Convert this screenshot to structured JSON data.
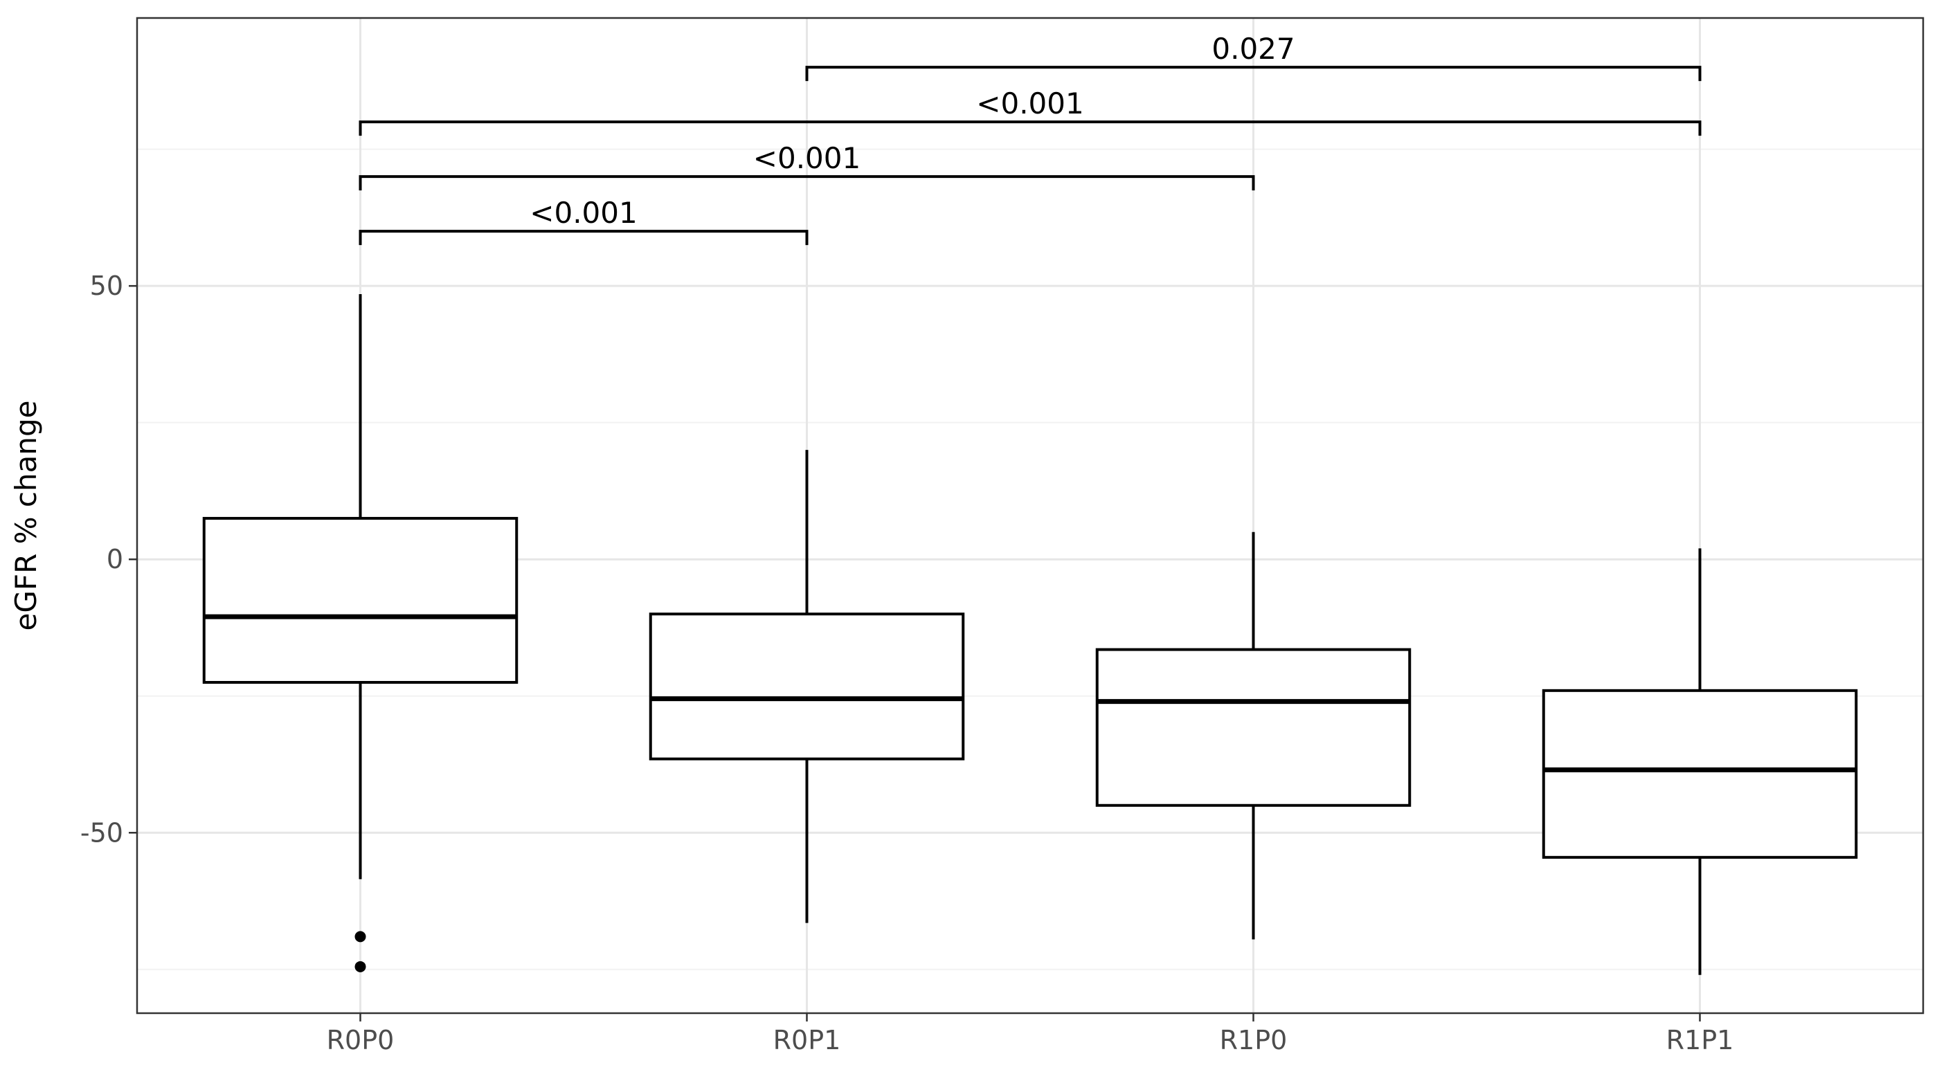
{
  "chart_data": {
    "type": "box",
    "ylabel": "eGFR % change",
    "xlabel": "",
    "categories": [
      "R0P0",
      "R0P1",
      "R1P0",
      "R1P1"
    ],
    "ylim": [
      -83,
      99
    ],
    "yticks": [
      50,
      0,
      -50
    ],
    "ytick_labels": [
      "50",
      "0",
      "-50"
    ],
    "grid": true,
    "boxes": [
      {
        "category": "R0P0",
        "whisker_low": -58.5,
        "q1": -22.5,
        "median": -10.5,
        "q3": 7.5,
        "whisker_high": 48.5
      },
      {
        "category": "R0P1",
        "whisker_low": -66.5,
        "q1": -36.5,
        "median": -25.5,
        "q3": -10,
        "whisker_high": 20
      },
      {
        "category": "R1P0",
        "whisker_low": -69.5,
        "q1": -45,
        "median": -26,
        "q3": -16.5,
        "whisker_high": 5
      },
      {
        "category": "R1P1",
        "whisker_low": -76,
        "q1": -54.5,
        "median": -38.5,
        "q3": -24,
        "whisker_high": 2
      }
    ],
    "outliers": [
      {
        "category": "R0P0",
        "y": -69
      },
      {
        "category": "R0P0",
        "y": -74.5
      }
    ],
    "comparisons": [
      {
        "from": "R0P0",
        "to": "R0P1",
        "label": "<0.001",
        "y": 60
      },
      {
        "from": "R0P0",
        "to": "R1P0",
        "label": "<0.001",
        "y": 70
      },
      {
        "from": "R0P0",
        "to": "R1P1",
        "label": "<0.001",
        "y": 80
      },
      {
        "from": "R0P1",
        "to": "R1P1",
        "label": "0.027",
        "y": 90
      }
    ]
  }
}
